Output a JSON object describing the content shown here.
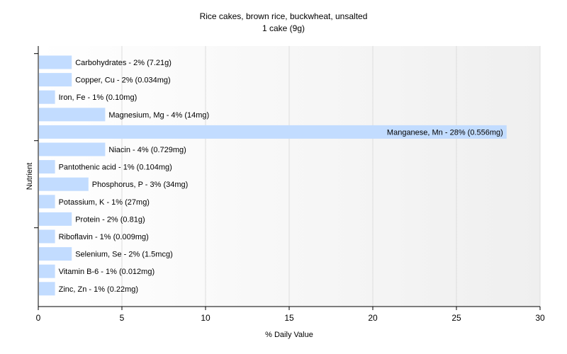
{
  "chart_data": {
    "type": "bar",
    "orientation": "horizontal",
    "title": "Rice cakes, brown rice, buckwheat, unsalted",
    "subtitle": "1 cake (9g)",
    "xlabel": "% Daily Value",
    "ylabel": "Nutrient",
    "xlim": [
      0,
      30
    ],
    "xticks": [
      0,
      5,
      10,
      15,
      20,
      25,
      30
    ],
    "grid": true,
    "bar_color": "#c2dcff",
    "categories": [
      "Carbohydrates",
      "Copper, Cu",
      "Iron, Fe",
      "Magnesium, Mg",
      "Manganese, Mn",
      "Niacin",
      "Pantothenic acid",
      "Phosphorus, P",
      "Potassium, K",
      "Protein",
      "Riboflavin",
      "Selenium, Se",
      "Vitamin B-6",
      "Zinc, Zn"
    ],
    "values": [
      2,
      2,
      1,
      4,
      28,
      4,
      1,
      3,
      1,
      2,
      1,
      2,
      1,
      1
    ],
    "labels": [
      "Carbohydrates - 2% (7.21g)",
      "Copper, Cu - 2% (0.034mg)",
      "Iron, Fe - 1% (0.10mg)",
      "Magnesium, Mg - 4% (14mg)",
      "Manganese, Mn - 28% (0.556mg)",
      "Niacin - 4% (0.729mg)",
      "Pantothenic acid - 1% (0.104mg)",
      "Phosphorus, P - 3% (34mg)",
      "Potassium, K - 1% (27mg)",
      "Protein - 2% (0.81g)",
      "Riboflavin - 1% (0.009mg)",
      "Selenium, Se - 2% (1.5mcg)",
      "Vitamin B-6 - 1% (0.012mg)",
      "Zinc, Zn - 1% (0.22mg)"
    ]
  }
}
